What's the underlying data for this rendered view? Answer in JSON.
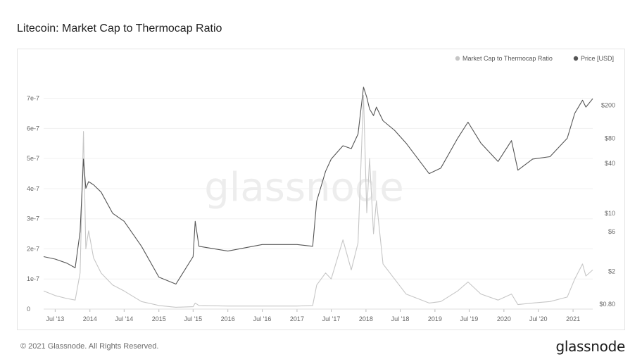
{
  "page": {
    "title": "Litecoin: Market Cap to Thermocap Ratio",
    "copyright": "© 2021 Glassnode. All Rights Reserved.",
    "brand": "glassnode",
    "watermark": "glassnode"
  },
  "colors": {
    "ratio": "#c6c6c6",
    "price": "#555555",
    "grid": "#f0f0f0",
    "axis_text": "#666666"
  },
  "chart_data": {
    "type": "line",
    "title": "Litecoin: Market Cap to Thermocap Ratio",
    "grid": true,
    "legend_position": "top-right",
    "x_range": [
      "2013-05-01",
      "2021-04-15"
    ],
    "x_ticks": [
      {
        "date": "2013-07-01",
        "label": "Jul '13"
      },
      {
        "date": "2014-01-01",
        "label": "2014"
      },
      {
        "date": "2014-07-01",
        "label": "Jul '14"
      },
      {
        "date": "2015-01-01",
        "label": "2015"
      },
      {
        "date": "2015-07-01",
        "label": "Jul '15"
      },
      {
        "date": "2016-01-01",
        "label": "2016"
      },
      {
        "date": "2016-07-01",
        "label": "Jul '16"
      },
      {
        "date": "2017-01-01",
        "label": "2017"
      },
      {
        "date": "2017-07-01",
        "label": "Jul '17"
      },
      {
        "date": "2018-01-01",
        "label": "2018"
      },
      {
        "date": "2018-07-01",
        "label": "Jul '18"
      },
      {
        "date": "2019-01-01",
        "label": "2019"
      },
      {
        "date": "2019-07-01",
        "label": "Jul '19"
      },
      {
        "date": "2020-01-01",
        "label": "2020"
      },
      {
        "date": "2020-07-01",
        "label": "Jul '20"
      },
      {
        "date": "2021-01-01",
        "label": "2021"
      }
    ],
    "y_left": {
      "scale": "linear",
      "range": [
        0,
        7.6e-07
      ],
      "ticks": [
        {
          "value": 0,
          "label": "0"
        },
        {
          "value": 1e-07,
          "label": "1e-7"
        },
        {
          "value": 2e-07,
          "label": "2e-7"
        },
        {
          "value": 3e-07,
          "label": "3e-7"
        },
        {
          "value": 4e-07,
          "label": "4e-7"
        },
        {
          "value": 5e-07,
          "label": "5e-7"
        },
        {
          "value": 6e-07,
          "label": "6e-7"
        },
        {
          "value": 7e-07,
          "label": "7e-7"
        }
      ]
    },
    "y_right": {
      "scale": "log",
      "range": [
        0.7,
        400
      ],
      "ticks": [
        {
          "value": 0.8,
          "label": "$0.80"
        },
        {
          "value": 2,
          "label": "$2"
        },
        {
          "value": 6,
          "label": "$6"
        },
        {
          "value": 10,
          "label": "$10"
        },
        {
          "value": 40,
          "label": "$40"
        },
        {
          "value": 80,
          "label": "$80"
        },
        {
          "value": 200,
          "label": "$200"
        }
      ]
    },
    "series": [
      {
        "name": "Market Cap to Thermocap Ratio",
        "axis": "left",
        "points": [
          [
            "2013-05-01",
            6e-08
          ],
          [
            "2013-07-01",
            4.5e-08
          ],
          [
            "2013-09-01",
            3.5e-08
          ],
          [
            "2013-10-15",
            3e-08
          ],
          [
            "2013-11-10",
            1.2e-07
          ],
          [
            "2013-11-28",
            5.9e-07
          ],
          [
            "2013-12-10",
            2e-07
          ],
          [
            "2013-12-25",
            2.6e-07
          ],
          [
            "2014-01-20",
            1.7e-07
          ],
          [
            "2014-03-01",
            1.2e-07
          ],
          [
            "2014-05-01",
            8e-08
          ],
          [
            "2014-07-01",
            6e-08
          ],
          [
            "2014-10-01",
            2.5e-08
          ],
          [
            "2015-01-01",
            1.2e-08
          ],
          [
            "2015-04-01",
            6e-09
          ],
          [
            "2015-07-01",
            8e-09
          ],
          [
            "2015-07-12",
            2e-08
          ],
          [
            "2015-08-01",
            1.2e-08
          ],
          [
            "2016-01-01",
            1e-08
          ],
          [
            "2016-07-01",
            1e-08
          ],
          [
            "2017-01-01",
            1e-08
          ],
          [
            "2017-03-25",
            1.2e-08
          ],
          [
            "2017-04-15",
            8e-08
          ],
          [
            "2017-06-01",
            1.2e-07
          ],
          [
            "2017-07-01",
            1e-07
          ],
          [
            "2017-09-01",
            2.3e-07
          ],
          [
            "2017-10-15",
            1.3e-07
          ],
          [
            "2017-11-20",
            2.2e-07
          ],
          [
            "2017-12-19",
            7.1e-07
          ],
          [
            "2018-01-05",
            3.2e-07
          ],
          [
            "2018-01-20",
            5e-07
          ],
          [
            "2018-02-10",
            2.5e-07
          ],
          [
            "2018-02-25",
            3.6e-07
          ],
          [
            "2018-04-01",
            1.5e-07
          ],
          [
            "2018-06-01",
            1e-07
          ],
          [
            "2018-08-01",
            5e-08
          ],
          [
            "2018-12-01",
            2e-08
          ],
          [
            "2019-02-01",
            2.5e-08
          ],
          [
            "2019-05-01",
            6e-08
          ],
          [
            "2019-06-25",
            9e-08
          ],
          [
            "2019-09-01",
            5e-08
          ],
          [
            "2019-12-01",
            3e-08
          ],
          [
            "2020-02-10",
            5e-08
          ],
          [
            "2020-03-15",
            1.5e-08
          ],
          [
            "2020-06-01",
            2e-08
          ],
          [
            "2020-09-01",
            2.5e-08
          ],
          [
            "2020-12-01",
            4e-08
          ],
          [
            "2021-01-10",
            1e-07
          ],
          [
            "2021-02-20",
            1.5e-07
          ],
          [
            "2021-03-10",
            1.1e-07
          ],
          [
            "2021-04-15",
            1.3e-07
          ]
        ]
      },
      {
        "name": "Price [USD]",
        "axis": "right",
        "points": [
          [
            "2013-05-01",
            3
          ],
          [
            "2013-07-01",
            2.8
          ],
          [
            "2013-09-01",
            2.5
          ],
          [
            "2013-10-15",
            2.2
          ],
          [
            "2013-11-10",
            6
          ],
          [
            "2013-11-28",
            45
          ],
          [
            "2013-12-10",
            20
          ],
          [
            "2013-12-25",
            24
          ],
          [
            "2014-01-20",
            22
          ],
          [
            "2014-03-01",
            18
          ],
          [
            "2014-05-01",
            10
          ],
          [
            "2014-07-01",
            8
          ],
          [
            "2014-10-01",
            4
          ],
          [
            "2015-01-01",
            1.7
          ],
          [
            "2015-04-01",
            1.4
          ],
          [
            "2015-07-01",
            3
          ],
          [
            "2015-07-12",
            8
          ],
          [
            "2015-08-01",
            4
          ],
          [
            "2016-01-01",
            3.5
          ],
          [
            "2016-07-01",
            4.2
          ],
          [
            "2017-01-01",
            4.2
          ],
          [
            "2017-03-25",
            4
          ],
          [
            "2017-04-15",
            14
          ],
          [
            "2017-06-01",
            32
          ],
          [
            "2017-07-01",
            45
          ],
          [
            "2017-09-01",
            65
          ],
          [
            "2017-10-15",
            60
          ],
          [
            "2017-11-20",
            90
          ],
          [
            "2017-12-19",
            330
          ],
          [
            "2018-01-05",
            250
          ],
          [
            "2018-01-20",
            180
          ],
          [
            "2018-02-10",
            150
          ],
          [
            "2018-02-25",
            190
          ],
          [
            "2018-04-01",
            130
          ],
          [
            "2018-06-01",
            100
          ],
          [
            "2018-08-01",
            70
          ],
          [
            "2018-12-01",
            30
          ],
          [
            "2019-02-01",
            35
          ],
          [
            "2019-05-01",
            80
          ],
          [
            "2019-06-25",
            125
          ],
          [
            "2019-09-01",
            70
          ],
          [
            "2019-12-01",
            42
          ],
          [
            "2020-02-10",
            75
          ],
          [
            "2020-03-15",
            33
          ],
          [
            "2020-06-01",
            45
          ],
          [
            "2020-09-01",
            48
          ],
          [
            "2020-12-01",
            80
          ],
          [
            "2021-01-10",
            160
          ],
          [
            "2021-02-20",
            230
          ],
          [
            "2021-03-10",
            190
          ],
          [
            "2021-04-15",
            240
          ]
        ]
      }
    ]
  }
}
